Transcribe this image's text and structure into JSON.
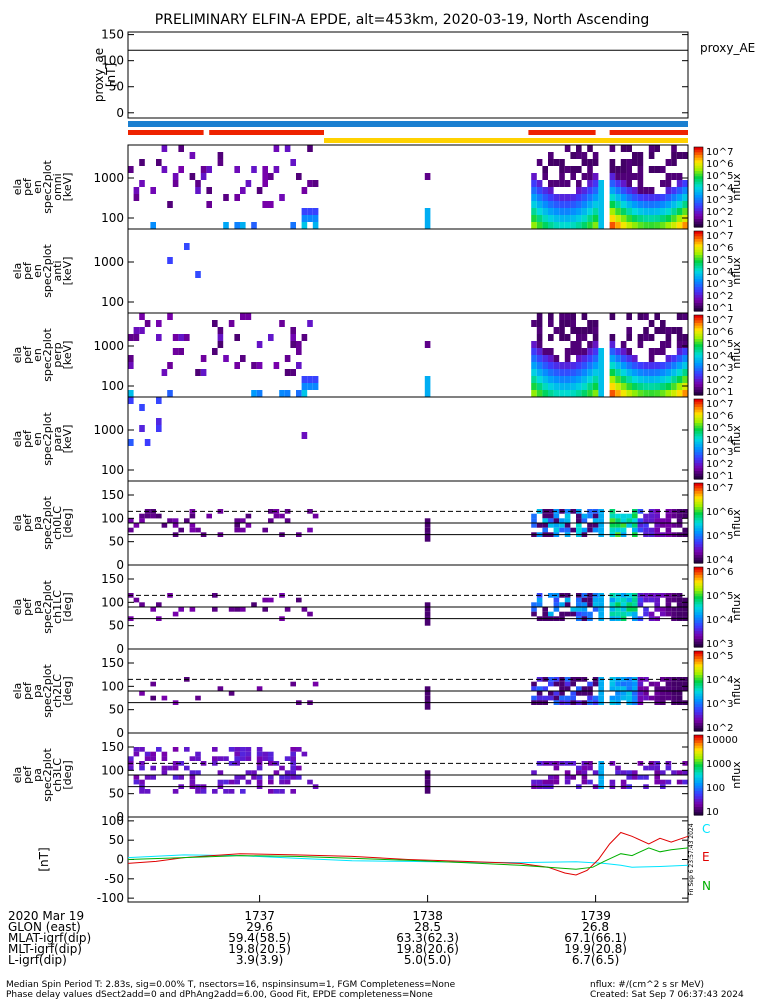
{
  "title": "PRELIMINARY ELFIN-A EPDE, alt=453km, 2020-03-19, North Ascending",
  "chart_data": [
    {
      "type": "line",
      "id": "proxy_ae",
      "ylabel_lines": [
        "proxy_ae",
        "[nT]"
      ],
      "legend": "proxy_AE",
      "ylim": [
        -10,
        155
      ],
      "yticks": [
        "150",
        "100",
        "50",
        "0"
      ],
      "ytick_values": [
        150,
        100,
        50,
        0
      ],
      "x": [
        0,
        1
      ],
      "values": [
        120,
        120
      ]
    },
    {
      "type": "status_bars",
      "id": "status",
      "bars": [
        {
          "row": "top",
          "color": "#1a7fd0",
          "segments": [
            [
              0.0,
              1.0
            ]
          ]
        },
        {
          "row": "mid",
          "color": "#ee2200",
          "segments": [
            [
              0.0,
              0.135
            ],
            [
              0.145,
              0.35
            ],
            [
              0.715,
              0.835
            ],
            [
              0.86,
              1.0
            ]
          ]
        },
        {
          "row": "low",
          "color": "#ffd200",
          "segments": [
            [
              0.35,
              1.0
            ]
          ]
        }
      ]
    },
    {
      "type": "heatmap",
      "id": "en_omni",
      "ylabel_lines": [
        "ela",
        "pef",
        "en",
        "spec2plot",
        "omni",
        "[keV]"
      ],
      "yticks": [
        "1000",
        "100"
      ],
      "colorbar_ticks": [
        "10^7",
        "10^6",
        "10^5",
        "10^4",
        "10^3",
        "10^2",
        "10^1"
      ],
      "zlabel": "nflux",
      "profile": "energy_full"
    },
    {
      "type": "heatmap",
      "id": "en_anti",
      "ylabel_lines": [
        "ela",
        "pef",
        "en",
        "spec2plot",
        "anti",
        "[keV]"
      ],
      "yticks": [
        "1000",
        "100"
      ],
      "colorbar_ticks": [
        "10^7",
        "10^6",
        "10^5",
        "10^4",
        "10^3",
        "10^2",
        "10^1"
      ],
      "zlabel": "nflux",
      "profile": "energy_sparse"
    },
    {
      "type": "heatmap",
      "id": "en_perp",
      "ylabel_lines": [
        "ela",
        "pef",
        "en",
        "spec2plot",
        "perp",
        "[keV]"
      ],
      "yticks": [
        "1000",
        "100"
      ],
      "colorbar_ticks": [
        "10^7",
        "10^6",
        "10^5",
        "10^4",
        "10^3",
        "10^2",
        "10^1"
      ],
      "zlabel": "nflux",
      "profile": "energy_full"
    },
    {
      "type": "heatmap",
      "id": "en_para",
      "ylabel_lines": [
        "ela",
        "pef",
        "en",
        "spec2plot",
        "para",
        "[keV]"
      ],
      "yticks": [
        "1000",
        "100"
      ],
      "colorbar_ticks": [
        "10^7",
        "10^6",
        "10^5",
        "10^4",
        "10^3",
        "10^2",
        "10^1"
      ],
      "zlabel": "nflux",
      "profile": "energy_para"
    },
    {
      "type": "heatmap",
      "id": "pa_ch0",
      "ylabel_lines": [
        "ela",
        "pef",
        "pa",
        "spec2plot",
        "ch0LC",
        "[deg]"
      ],
      "ylim": [
        0,
        180
      ],
      "yticks": [
        "150",
        "100",
        "50",
        "0"
      ],
      "ytick_values": [
        150,
        100,
        50,
        0
      ],
      "reference_lines": [
        115,
        90,
        65
      ],
      "colorbar_ticks": [
        "10^7",
        "10^6",
        "10^5",
        "10^4"
      ],
      "zlabel": "nflux",
      "profile": "pitch_strong"
    },
    {
      "type": "heatmap",
      "id": "pa_ch1",
      "ylabel_lines": [
        "ela",
        "pef",
        "pa",
        "spec2plot",
        "ch1LC",
        "[deg]"
      ],
      "ylim": [
        0,
        180
      ],
      "yticks": [
        "150",
        "100",
        "50",
        "0"
      ],
      "ytick_values": [
        150,
        100,
        50,
        0
      ],
      "reference_lines": [
        115,
        90,
        65
      ],
      "colorbar_ticks": [
        "10^6",
        "10^5",
        "10^4",
        "10^3"
      ],
      "zlabel": "nflux",
      "profile": "pitch_medium"
    },
    {
      "type": "heatmap",
      "id": "pa_ch2",
      "ylabel_lines": [
        "ela",
        "pef",
        "pa",
        "spec2plot",
        "ch2LC",
        "[deg]"
      ],
      "ylim": [
        0,
        180
      ],
      "yticks": [
        "150",
        "100",
        "50",
        "0"
      ],
      "ytick_values": [
        150,
        100,
        50,
        0
      ],
      "reference_lines": [
        115,
        90,
        65
      ],
      "colorbar_ticks": [
        "10^5",
        "10^4",
        "10^3",
        "10^2"
      ],
      "zlabel": "nflux",
      "profile": "pitch_weak"
    },
    {
      "type": "heatmap",
      "id": "pa_ch3",
      "ylabel_lines": [
        "ela",
        "pef",
        "pa",
        "spec2plot",
        "ch3LC",
        "[deg]"
      ],
      "ylim": [
        0,
        180
      ],
      "yticks": [
        "150",
        "100",
        "50",
        "0"
      ],
      "ytick_values": [
        150,
        100,
        50,
        0
      ],
      "reference_lines": [
        115,
        90,
        65
      ],
      "colorbar_ticks": [
        "10000",
        "1000",
        "100",
        "10"
      ],
      "zlabel": "nflux",
      "profile": "pitch_scatter"
    },
    {
      "type": "line",
      "id": "fgm",
      "ylabel_lines": [
        "[nT]"
      ],
      "ylim": [
        -110,
        110
      ],
      "yticks": [
        "100",
        "50",
        "0",
        "-50",
        "-100"
      ],
      "ytick_values": [
        100,
        50,
        0,
        -50,
        -100
      ],
      "side_note": "Fri Sep 6 23:57:43 2024",
      "series": [
        {
          "name": "C",
          "color": "#00e5ff",
          "x": [
            0.0,
            0.1,
            0.2,
            0.3,
            0.4,
            0.5,
            0.6,
            0.7,
            0.8,
            0.85,
            0.88,
            0.9,
            0.95,
            1.0
          ],
          "values": [
            5,
            12,
            10,
            3,
            -3,
            -5,
            -7,
            -8,
            -6,
            -10,
            -15,
            -20,
            -18,
            -15
          ]
        },
        {
          "name": "E",
          "color": "#e00000",
          "x": [
            0.0,
            0.05,
            0.1,
            0.15,
            0.2,
            0.3,
            0.4,
            0.5,
            0.6,
            0.7,
            0.75,
            0.78,
            0.8,
            0.82,
            0.84,
            0.86,
            0.88,
            0.9,
            0.93,
            0.95,
            0.97,
            1.0
          ],
          "values": [
            -10,
            -5,
            5,
            10,
            15,
            12,
            8,
            0,
            -5,
            -10,
            -20,
            -35,
            -40,
            -28,
            0,
            40,
            70,
            60,
            40,
            55,
            45,
            60
          ]
        },
        {
          "name": "N",
          "color": "#00b000",
          "x": [
            0.0,
            0.1,
            0.2,
            0.3,
            0.4,
            0.5,
            0.6,
            0.7,
            0.75,
            0.8,
            0.83,
            0.85,
            0.88,
            0.9,
            0.93,
            0.95,
            0.97,
            1.0
          ],
          "values": [
            0,
            5,
            10,
            8,
            3,
            -2,
            -8,
            -15,
            -20,
            -25,
            -20,
            -5,
            15,
            10,
            30,
            20,
            25,
            30
          ]
        }
      ]
    }
  ],
  "time_axis": {
    "tick_labels": [
      "1737",
      "1738",
      "1739"
    ],
    "tick_fractions": [
      0.235,
      0.535,
      0.835
    ],
    "row_labels": [
      "2020 Mar 19",
      "GLON (east)",
      "MLAT-igrf(dip)",
      "MLT-igrf(dip)",
      "L-igrf(dip)"
    ],
    "columns": [
      [
        "1737",
        "29.6",
        "59.4(58.5)",
        "19.8(20.5)",
        "3.9(3.9)"
      ],
      [
        "1738",
        "28.5",
        "63.3(62.3)",
        "19.8(20.6)",
        "5.0(5.0)"
      ],
      [
        "1739",
        "26.8",
        "67.1(66.1)",
        "19.9(20.8)",
        "6.7(6.5)"
      ]
    ]
  },
  "footer": {
    "line1_left": "Median Spin Period T: 2.83s, sig=0.00% T, nsectors=16, nspinsinsum=1, FGM Completeness=None",
    "line2_left": "Phase delay values dSect2add=0 and dPhAng2add=6.00, Good Fit, EPDE completeness=None",
    "line1_right": "nflux: #/(cm^2 s sr MeV)",
    "line2_right": "Created: Sat Sep  7 06:37:43 2024"
  }
}
